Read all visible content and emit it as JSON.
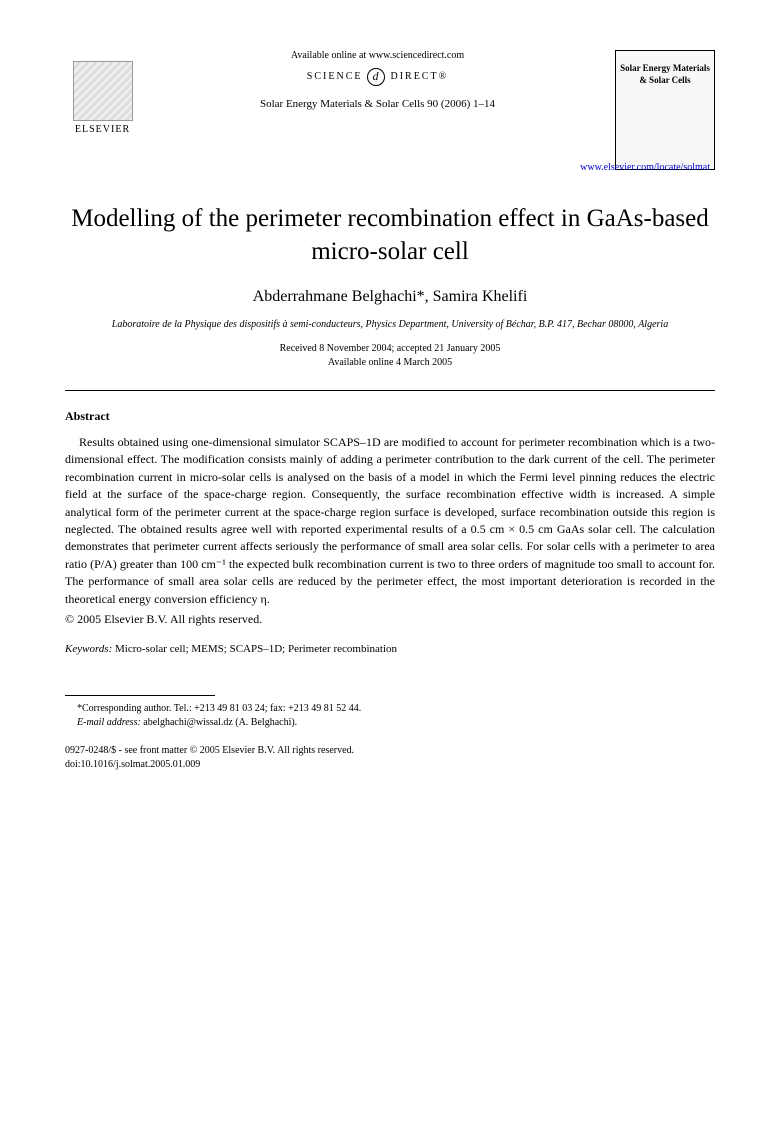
{
  "header": {
    "elsevier_label": "ELSEVIER",
    "available_online": "Available online at www.sciencedirect.com",
    "science_direct_left": "SCIENCE",
    "science_direct_symbol": "d",
    "science_direct_right": "DIRECT®",
    "journal_reference": "Solar Energy Materials & Solar Cells 90 (2006) 1–14",
    "journal_box_line1": "Solar Energy Materials",
    "journal_box_line2": "& Solar Cells",
    "journal_url": "www.elsevier.com/locate/solmat"
  },
  "title": "Modelling of the perimeter recombination effect in GaAs-based micro-solar cell",
  "authors": "Abderrahmane Belghachi*, Samira Khelifi",
  "affiliation": "Laboratoire de la Physique des dispositifs à semi-conducteurs, Physics Department, University of Béchar, B.P. 417, Bechar 08000, Algeria",
  "dates": {
    "received": "Received 8 November 2004; accepted 21 January 2005",
    "available": "Available online 4 March 2005"
  },
  "abstract": {
    "heading": "Abstract",
    "text": "Results obtained using one-dimensional simulator SCAPS–1D are modified to account for perimeter recombination which is a two-dimensional effect. The modification consists mainly of adding a perimeter contribution to the dark current of the cell. The perimeter recombination current in micro-solar cells is analysed on the basis of a model in which the Fermi level pinning reduces the electric field at the surface of the space-charge region. Consequently, the surface recombination effective width is increased. A simple analytical form of the perimeter current at the space-charge region surface is developed, surface recombination outside this region is neglected. The obtained results agree well with reported experimental results of a 0.5 cm × 0.5 cm GaAs solar cell. The calculation demonstrates that perimeter current affects seriously the performance of small area solar cells. For solar cells with a perimeter to area ratio (P/A) greater than 100 cm⁻¹ the expected bulk recombination current is two to three orders of magnitude too small to account for. The performance of small area solar cells are reduced by the perimeter effect, the most important deterioration is recorded in the theoretical energy conversion efficiency η.",
    "copyright": "© 2005 Elsevier B.V. All rights reserved."
  },
  "keywords": {
    "label": "Keywords:",
    "text": " Micro-solar cell; MEMS; SCAPS–1D; Perimeter recombination"
  },
  "footnote": {
    "corresponding": "*Corresponding author. Tel.: +213 49 81 03 24; fax: +213 49 81 52 44.",
    "email_label": "E-mail address:",
    "email": " abelghachi@wissal.dz (A. Belghachi)."
  },
  "bottom": {
    "issn": "0927-0248/$ - see front matter © 2005 Elsevier B.V. All rights reserved.",
    "doi": "doi:10.1016/j.solmat.2005.01.009"
  }
}
